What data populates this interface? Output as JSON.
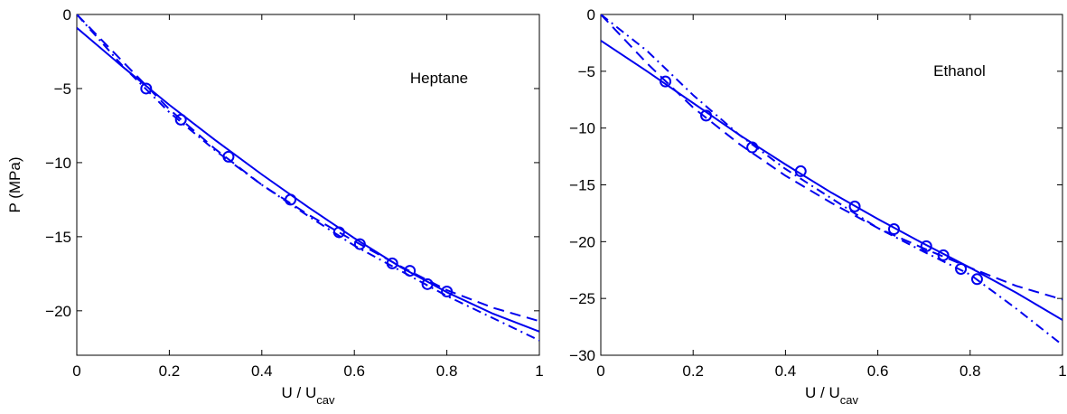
{
  "chart_data": [
    {
      "type": "line",
      "annotation": "Heptane",
      "xlabel": "U / U",
      "xlabel_sub": "cav",
      "ylabel": "P (MPa)",
      "xlim": [
        0,
        1
      ],
      "ylim": [
        -23,
        0
      ],
      "xticks": [
        0,
        0.2,
        0.4,
        0.6,
        0.8,
        1
      ],
      "xtick_labels": [
        "0",
        "0.2",
        "0.4",
        "0.6",
        "0.8",
        "1"
      ],
      "yticks": [
        0,
        -5,
        -10,
        -15,
        -20
      ],
      "ytick_labels": [
        "0",
        "−5",
        "−10",
        "−15",
        "−20"
      ],
      "grid": false,
      "color": "#0000ee",
      "series": [
        {
          "style": "markers",
          "x": [
            0.15,
            0.225,
            0.328,
            0.462,
            0.567,
            0.612,
            0.682,
            0.72,
            0.758,
            0.8
          ],
          "y": [
            -5.0,
            -7.1,
            -9.6,
            -12.5,
            -14.7,
            -15.5,
            -16.8,
            -17.3,
            -18.2,
            -18.7
          ]
        },
        {
          "style": "solid",
          "x": [
            0,
            0.1,
            0.2,
            0.3,
            0.4,
            0.5,
            0.6,
            0.7,
            0.8,
            0.9,
            1.0
          ],
          "y": [
            -0.9,
            -3.55,
            -6.1,
            -8.5,
            -10.8,
            -13.0,
            -15.1,
            -17.05,
            -18.75,
            -20.2,
            -21.4
          ]
        },
        {
          "style": "dashed",
          "x": [
            0,
            0.1,
            0.2,
            0.3,
            0.4,
            0.5,
            0.6,
            0.7,
            0.8,
            0.9,
            1.0
          ],
          "y": [
            0,
            -3.2,
            -6.4,
            -9.1,
            -11.5,
            -13.5,
            -15.3,
            -17.0,
            -18.6,
            -19.8,
            -20.7
          ]
        },
        {
          "style": "dashdot",
          "x": [
            0,
            0.1,
            0.2,
            0.3,
            0.4,
            0.5,
            0.6,
            0.7,
            0.8,
            0.9,
            1.0
          ],
          "y": [
            0,
            -3.5,
            -6.6,
            -9.2,
            -11.5,
            -13.6,
            -15.6,
            -17.3,
            -19.0,
            -20.5,
            -22.0
          ]
        }
      ]
    },
    {
      "type": "line",
      "annotation": "Ethanol",
      "xlabel": "U / U",
      "xlabel_sub": "cav",
      "ylabel": "",
      "xlim": [
        0,
        1
      ],
      "ylim": [
        -30,
        0
      ],
      "xticks": [
        0,
        0.2,
        0.4,
        0.6,
        0.8,
        1
      ],
      "xtick_labels": [
        "0",
        "0.2",
        "0.4",
        "0.6",
        "0.8",
        "1"
      ],
      "yticks": [
        0,
        -5,
        -10,
        -15,
        -20,
        -25,
        -30
      ],
      "ytick_labels": [
        "0",
        "−5",
        "−10",
        "−15",
        "−20",
        "−25",
        "−30"
      ],
      "grid": false,
      "color": "#0000ee",
      "series": [
        {
          "style": "markers",
          "x": [
            0.14,
            0.228,
            0.328,
            0.433,
            0.55,
            0.635,
            0.705,
            0.742,
            0.78,
            0.815
          ],
          "y": [
            -5.9,
            -8.9,
            -11.7,
            -13.8,
            -16.9,
            -18.9,
            -20.4,
            -21.2,
            -22.4,
            -23.3
          ]
        },
        {
          "style": "solid",
          "x": [
            0,
            0.1,
            0.2,
            0.3,
            0.4,
            0.5,
            0.6,
            0.7,
            0.8,
            0.9,
            1.0
          ],
          "y": [
            -2.3,
            -5.0,
            -7.8,
            -10.6,
            -13.2,
            -15.7,
            -18.0,
            -20.2,
            -22.3,
            -24.5,
            -26.9
          ]
        },
        {
          "style": "dashed",
          "x": [
            0,
            0.1,
            0.2,
            0.3,
            0.4,
            0.5,
            0.6,
            0.7,
            0.8,
            0.9,
            1.0
          ],
          "y": [
            0,
            -4.3,
            -8.2,
            -11.4,
            -14.2,
            -16.6,
            -18.8,
            -20.6,
            -22.3,
            -23.9,
            -25.1
          ]
        },
        {
          "style": "dashdot",
          "x": [
            0,
            0.1,
            0.2,
            0.3,
            0.4,
            0.5,
            0.6,
            0.7,
            0.8,
            0.9,
            1.0
          ],
          "y": [
            0,
            -3.2,
            -7.1,
            -10.6,
            -13.6,
            -16.2,
            -18.8,
            -20.9,
            -22.9,
            -25.9,
            -29.1
          ]
        }
      ]
    }
  ]
}
